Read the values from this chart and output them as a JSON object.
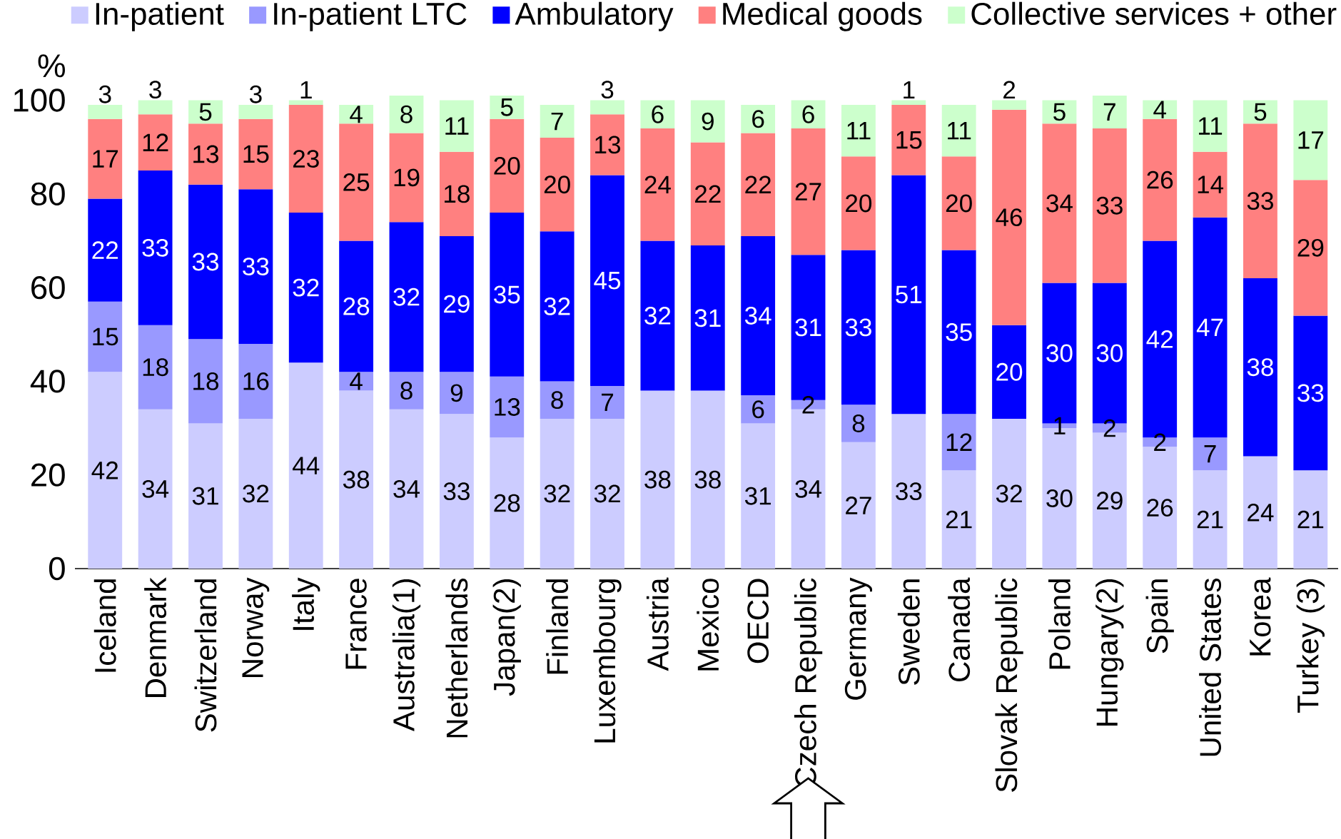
{
  "chart_data": {
    "type": "bar",
    "stacked": true,
    "ylabel": "%",
    "legend": "top",
    "data_labels": true,
    "categories": [
      "Iceland",
      "Denmark",
      "Switzerland",
      "Norway",
      "Italy",
      "France",
      "Australia(1)",
      "Netherlands",
      "Japan(2)",
      "Finland",
      "Luxembourg",
      "Austria",
      "Mexico",
      "OECD",
      "Czech Republic",
      "Germany",
      "Sweden",
      "Canada",
      "Slovak Republic",
      "Poland",
      "Hungary(2)",
      "Spain",
      "United States",
      "Korea",
      "Turkey (3)"
    ],
    "series": [
      {
        "name": "In-patient",
        "color": "#ccccff",
        "values": [
          42,
          34,
          31,
          32,
          44,
          38,
          34,
          33,
          28,
          32,
          32,
          38,
          38,
          31,
          34,
          27,
          33,
          21,
          32,
          30,
          29,
          26,
          21,
          24,
          21
        ]
      },
      {
        "name": "In-patient LTC",
        "color": "#9999ff",
        "values": [
          15,
          18,
          18,
          16,
          null,
          4,
          8,
          9,
          13,
          8,
          7,
          null,
          null,
          6,
          2,
          8,
          null,
          12,
          null,
          1,
          2,
          2,
          7,
          null,
          null
        ]
      },
      {
        "name": "Ambulatory",
        "color": "#0000ff",
        "values": [
          22,
          33,
          33,
          33,
          32,
          28,
          32,
          29,
          35,
          32,
          45,
          32,
          31,
          34,
          31,
          33,
          51,
          35,
          20,
          30,
          30,
          42,
          47,
          38,
          33
        ]
      },
      {
        "name": "Medical goods",
        "color": "#ff8080",
        "values": [
          17,
          12,
          13,
          15,
          23,
          25,
          19,
          18,
          20,
          20,
          13,
          24,
          22,
          22,
          27,
          20,
          15,
          20,
          46,
          34,
          33,
          26,
          14,
          33,
          29
        ]
      },
      {
        "name": "Collective services + other",
        "color": "#ccffcc",
        "values": [
          3,
          3,
          5,
          3,
          1,
          4,
          8,
          11,
          5,
          7,
          3,
          6,
          9,
          6,
          6,
          11,
          1,
          11,
          2,
          5,
          7,
          4,
          11,
          5,
          17
        ]
      }
    ],
    "ylim": [
      0,
      101
    ],
    "yticks": [
      0,
      20,
      40,
      60,
      80,
      100
    ]
  }
}
